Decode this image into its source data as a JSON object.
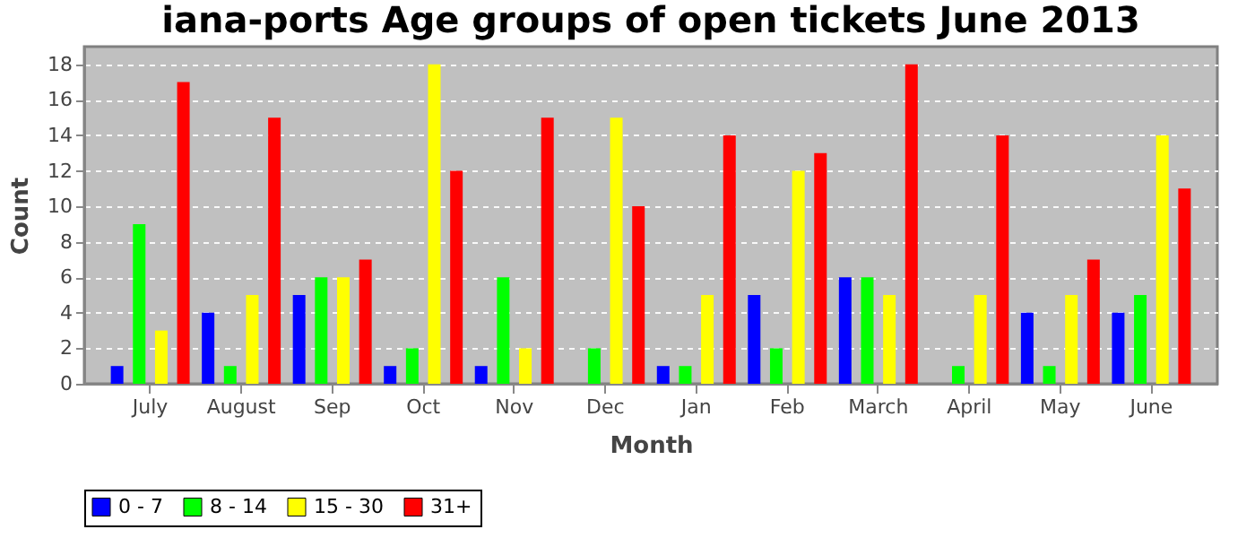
{
  "chart_data": {
    "type": "bar",
    "title": "iana-ports Age groups of open tickets June 2013",
    "xlabel": "Month",
    "ylabel": "Count",
    "categories": [
      "July",
      "August",
      "Sep",
      "Oct",
      "Nov",
      "Dec",
      "Jan",
      "Feb",
      "March",
      "April",
      "May",
      "June"
    ],
    "series": [
      {
        "name": "0 - 7",
        "color": "#0000ff",
        "values": [
          1,
          4,
          5,
          1,
          1,
          0,
          1,
          5,
          6,
          0,
          4,
          4
        ]
      },
      {
        "name": "8 - 14",
        "color": "#00ff00",
        "values": [
          9,
          1,
          6,
          2,
          6,
          2,
          1,
          2,
          6,
          1,
          1,
          5
        ]
      },
      {
        "name": "15 - 30",
        "color": "#ffff00",
        "values": [
          3,
          5,
          6,
          18,
          2,
          15,
          5,
          12,
          5,
          5,
          5,
          14
        ]
      },
      {
        "name": "31+",
        "color": "#ff0000",
        "values": [
          17,
          15,
          7,
          12,
          15,
          10,
          14,
          13,
          18,
          14,
          7,
          11
        ]
      }
    ],
    "ylim": [
      0,
      19
    ],
    "yticks": [
      0,
      2,
      4,
      6,
      8,
      10,
      12,
      14,
      16,
      18
    ],
    "grid": "y",
    "legend": "bottom"
  }
}
